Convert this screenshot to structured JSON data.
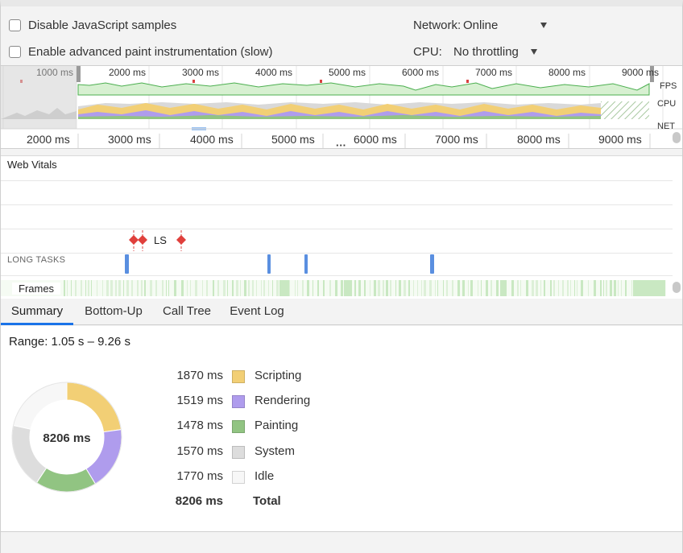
{
  "settings": {
    "disable_js_samples": "Disable JavaScript samples",
    "advanced_paint": "Enable advanced paint instrumentation (slow)",
    "network_label": "Network:",
    "network_value": "Online",
    "cpu_label": "CPU:",
    "cpu_value": "No throttling"
  },
  "overview": {
    "top_ticks": [
      "1000 ms",
      "2000 ms",
      "3000 ms",
      "4000 ms",
      "5000 ms",
      "6000 ms",
      "7000 ms",
      "8000 ms",
      "9000 ms"
    ],
    "lane_labels": [
      "FPS",
      "CPU",
      "NET"
    ],
    "bottom_ticks": [
      "2000 ms",
      "3000 ms",
      "4000 ms",
      "5000 ms",
      "6000 ms",
      "7000 ms",
      "8000 ms",
      "9000 ms"
    ],
    "resize_handle": "···"
  },
  "tracks": {
    "web_vitals": "Web Vitals",
    "ls_label": "LS",
    "long_tasks": "LONG TASKS",
    "frames": "Frames"
  },
  "tabs": [
    "Summary",
    "Bottom-Up",
    "Call Tree",
    "Event Log"
  ],
  "summary": {
    "range": "Range: 1.05 s – 9.26 s",
    "total_center": "8206 ms",
    "rows": [
      {
        "ms": "1870 ms",
        "name": "Scripting",
        "value": 1870,
        "color": "#f2cf75"
      },
      {
        "ms": "1519 ms",
        "name": "Rendering",
        "value": 1519,
        "color": "#af9ced"
      },
      {
        "ms": "1478 ms",
        "name": "Painting",
        "value": 1478,
        "color": "#91c482"
      },
      {
        "ms": "1570 ms",
        "name": "System",
        "value": 1570,
        "color": "#dddddd"
      },
      {
        "ms": "1770 ms",
        "name": "Idle",
        "value": 1770,
        "color": "#f7f7f7"
      }
    ],
    "total": {
      "ms": "8206 ms",
      "name": "Total"
    }
  }
}
